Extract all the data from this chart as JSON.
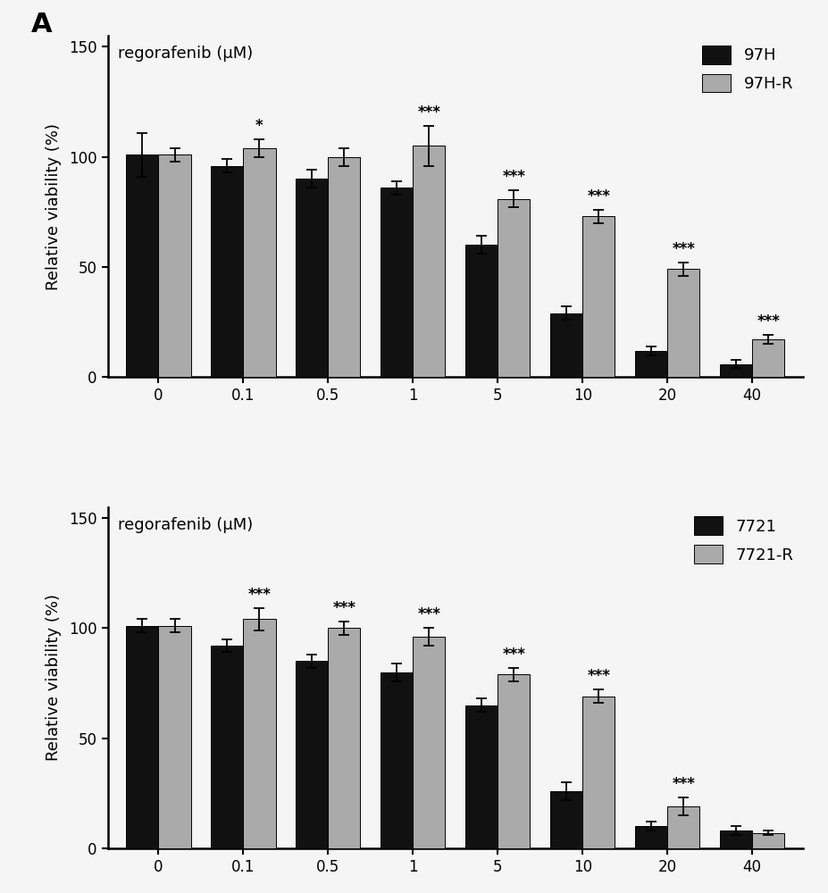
{
  "panel1": {
    "title": "regorafenib (μM)",
    "legend_labels": [
      "97H",
      "97H-R"
    ],
    "bar_colors": [
      "#111111",
      "#aaaaaa"
    ],
    "x_labels": [
      "0",
      "0.1",
      "0.5",
      "1",
      "5",
      "10",
      "20",
      "40"
    ],
    "black_values": [
      101,
      96,
      90,
      86,
      60,
      29,
      12,
      6
    ],
    "gray_values": [
      101,
      104,
      100,
      105,
      81,
      73,
      49,
      17
    ],
    "black_errors": [
      10,
      3,
      4,
      3,
      4,
      3,
      2,
      2
    ],
    "gray_errors": [
      3,
      4,
      4,
      9,
      4,
      3,
      3,
      2
    ],
    "sig_above_gray": [
      "",
      "*",
      "",
      "***",
      "***",
      "***",
      "***",
      "***"
    ],
    "ylabel": "Relative viability (%)",
    "ylim": [
      0,
      155
    ],
    "yticks": [
      0,
      50,
      100,
      150
    ]
  },
  "panel2": {
    "title": "regorafenib (μM)",
    "legend_labels": [
      "7721",
      "7721-R"
    ],
    "bar_colors": [
      "#111111",
      "#aaaaaa"
    ],
    "x_labels": [
      "0",
      "0.1",
      "0.5",
      "1",
      "5",
      "10",
      "20",
      "40"
    ],
    "black_values": [
      101,
      92,
      85,
      80,
      65,
      26,
      10,
      8
    ],
    "gray_values": [
      101,
      104,
      100,
      96,
      79,
      69,
      19,
      7
    ],
    "black_errors": [
      3,
      3,
      3,
      4,
      3,
      4,
      2,
      2
    ],
    "gray_errors": [
      3,
      5,
      3,
      4,
      3,
      3,
      4,
      1
    ],
    "sig_above_gray": [
      "",
      "***",
      "***",
      "***",
      "***",
      "***",
      "***",
      ""
    ],
    "ylabel": "Relative viability (%)",
    "ylim": [
      0,
      155
    ],
    "yticks": [
      0,
      50,
      100,
      150
    ]
  },
  "fig_label": "A",
  "background_color": "#f5f5f5",
  "bar_width": 0.38,
  "fontsize_title": 13,
  "fontsize_axis": 13,
  "fontsize_tick": 12,
  "fontsize_legend": 13,
  "fontsize_sig": 12
}
